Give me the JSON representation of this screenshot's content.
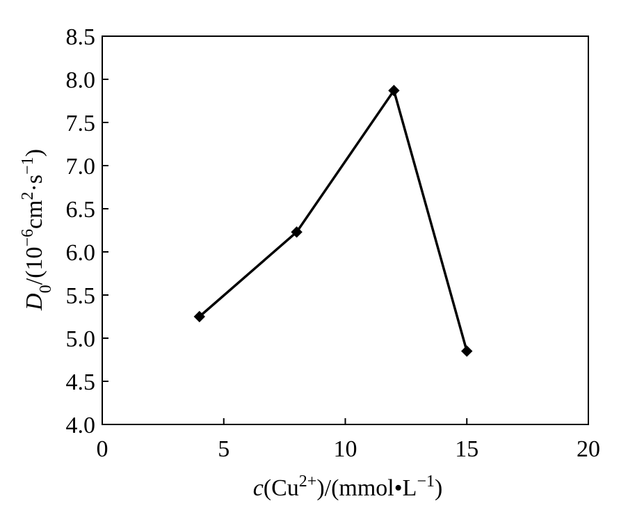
{
  "chart_data": {
    "type": "line",
    "title": "",
    "xlabel_parts": {
      "var": "c",
      "open": "(Cu",
      "sup1": "2+",
      "mid": ")/(mmol•L",
      "sup2": "−1",
      "close": ")"
    },
    "ylabel_parts": {
      "var": "D",
      "sub": "0",
      "open": "/(10",
      "sup1": "−6",
      "mid1": "cm",
      "sup2": "2",
      "mid2": "·s",
      "sup3": "−1",
      "close": ")"
    },
    "xlim": [
      0,
      20
    ],
    "ylim": [
      4.0,
      8.5
    ],
    "xticks": [
      0,
      5,
      10,
      15,
      20
    ],
    "xtick_labels": [
      "0",
      "5",
      "10",
      "15",
      "20"
    ],
    "yticks": [
      4.0,
      4.5,
      5.0,
      5.5,
      6.0,
      6.5,
      7.0,
      7.5,
      8.0,
      8.5
    ],
    "ytick_labels": [
      "4.0",
      "4.5",
      "5.0",
      "5.5",
      "6.0",
      "6.5",
      "7.0",
      "7.5",
      "8.0",
      "8.5"
    ],
    "grid": false,
    "marker": "diamond",
    "line_color": "#000000",
    "series": [
      {
        "x": [
          4,
          8,
          12,
          15
        ],
        "y": [
          5.25,
          6.23,
          7.87,
          4.85
        ]
      }
    ]
  }
}
